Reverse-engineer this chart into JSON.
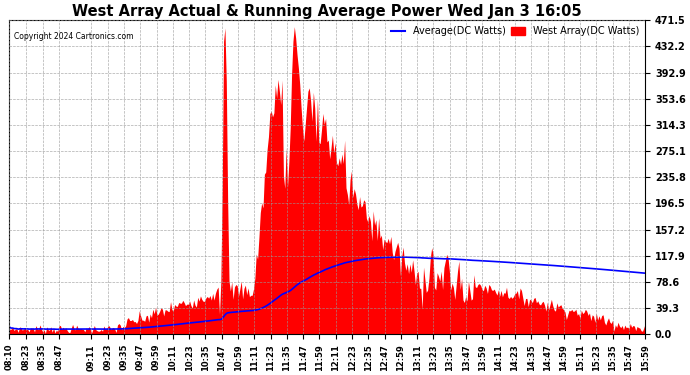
{
  "title": "West Array Actual & Running Average Power Wed Jan 3 16:05",
  "copyright": "Copyright 2024 Cartronics.com",
  "legend_average": "Average(DC Watts)",
  "legend_west": "West Array(DC Watts)",
  "ylabel_right_ticks": [
    0.0,
    39.3,
    78.6,
    117.9,
    157.2,
    196.5,
    235.8,
    275.1,
    314.3,
    353.6,
    392.9,
    432.2,
    471.5
  ],
  "ymax": 471.5,
  "ymin": 0.0,
  "bg_color": "#ffffff",
  "grid_color": "#aaaaaa",
  "area_color": "#ff0000",
  "line_color": "#0000ff",
  "title_color": "#000000",
  "copyright_color": "#000000",
  "legend_avg_color": "#0000ff",
  "legend_west_color": "#ff0000",
  "time_labels": [
    "08:10",
    "08:23",
    "08:35",
    "08:47",
    "09:11",
    "09:23",
    "09:35",
    "09:47",
    "09:59",
    "10:11",
    "10:23",
    "10:35",
    "10:47",
    "10:59",
    "11:11",
    "11:23",
    "11:35",
    "11:47",
    "11:59",
    "12:11",
    "12:23",
    "12:35",
    "12:47",
    "12:59",
    "13:11",
    "13:23",
    "13:35",
    "13:47",
    "13:59",
    "14:11",
    "14:23",
    "14:35",
    "14:47",
    "14:59",
    "15:11",
    "15:23",
    "15:35",
    "15:47",
    "15:59"
  ]
}
